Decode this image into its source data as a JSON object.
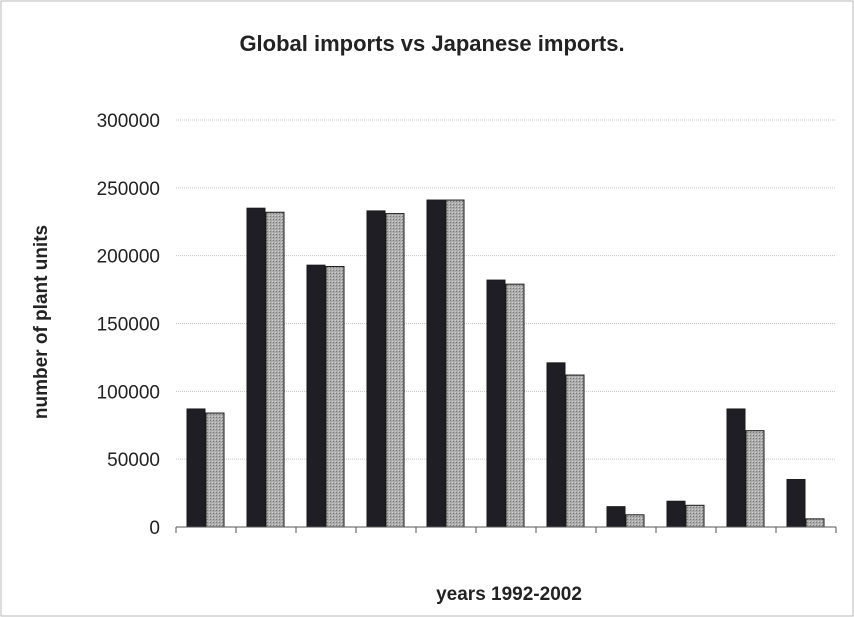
{
  "chart_data": {
    "type": "bar",
    "title": "Global imports vs Japanese imports.",
    "xlabel": "years 1992-2002",
    "ylabel": "number of plant units",
    "ylim": [
      0,
      300000
    ],
    "yticks": [
      0,
      50000,
      100000,
      150000,
      200000,
      250000,
      300000
    ],
    "categories": [
      "",
      "",
      "",
      "",
      "",
      "",
      "",
      "",
      "",
      "",
      ""
    ],
    "series": [
      {
        "values": [
          87000,
          235000,
          193000,
          233000,
          241000,
          182000,
          121000,
          15000,
          19000,
          87000,
          35000
        ],
        "color": "#1e1e24"
      },
      {
        "values": [
          84000,
          232000,
          192000,
          231000,
          241000,
          179000,
          112000,
          9000,
          16000,
          71000,
          6000
        ],
        "color": "#a3a3a3"
      }
    ],
    "grid": true,
    "legend": "none"
  }
}
